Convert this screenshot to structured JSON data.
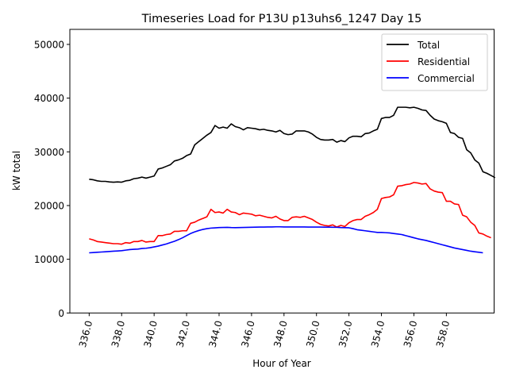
{
  "chart_data": {
    "type": "line",
    "title": "Timeseries Load for P13U p13uhs6_1247  Day 15",
    "xlabel": "Hour of Year",
    "ylabel": "kW total",
    "xlim": [
      334.81,
      360.94
    ],
    "ylim": [
      0,
      52800
    ],
    "xticks": [
      336,
      338,
      340,
      342,
      344,
      346,
      348,
      350,
      352,
      354,
      356,
      358
    ],
    "xtick_labels": [
      "336.0",
      "338.0",
      "340.0",
      "342.0",
      "344.0",
      "346.0",
      "348.0",
      "350.0",
      "352.0",
      "354.0",
      "356.0",
      "358.0"
    ],
    "yticks": [
      0,
      10000,
      20000,
      30000,
      40000,
      50000
    ],
    "ytick_labels": [
      "0",
      "10000",
      "20000",
      "30000",
      "40000",
      "50000"
    ],
    "grid": false,
    "legend_position": "top-right",
    "x_start": 336,
    "x_step": 0.25,
    "series": [
      {
        "name": "Total",
        "color": "#000000",
        "values": [
          24900,
          24800,
          24600,
          24500,
          24500,
          24400,
          24350,
          24400,
          24350,
          24600,
          24700,
          25000,
          25100,
          25300,
          25100,
          25300,
          25500,
          26800,
          27000,
          27300,
          27600,
          28300,
          28500,
          28800,
          29300,
          29600,
          31300,
          31900,
          32500,
          33100,
          33600,
          34900,
          34400,
          34600,
          34400,
          35200,
          34700,
          34500,
          34100,
          34500,
          34400,
          34300,
          34100,
          34200,
          34000,
          33900,
          33700,
          34000,
          33400,
          33200,
          33300,
          33900,
          33900,
          33900,
          33700,
          33300,
          32700,
          32300,
          32200,
          32200,
          32300,
          31800,
          32100,
          31900,
          32600,
          32900,
          32900,
          32800,
          33400,
          33500,
          33900,
          34200,
          36200,
          36400,
          36400,
          36800,
          38300,
          38300,
          38300,
          38200,
          38300,
          38100,
          37800,
          37700,
          36800,
          36100,
          35800,
          35600,
          35300,
          33600,
          33400,
          32700,
          32500,
          30400,
          29800,
          28500,
          27900,
          26300,
          26000,
          25600,
          25200
        ]
      },
      {
        "name": "Residential",
        "color": "#ff0000",
        "values": [
          13800,
          13600,
          13300,
          13200,
          13100,
          13000,
          12900,
          12900,
          12800,
          13100,
          13000,
          13300,
          13300,
          13500,
          13200,
          13300,
          13300,
          14400,
          14400,
          14600,
          14700,
          15200,
          15200,
          15300,
          15300,
          16700,
          16900,
          17300,
          17600,
          17900,
          19300,
          18700,
          18800,
          18600,
          19300,
          18800,
          18700,
          18300,
          18600,
          18500,
          18400,
          18100,
          18200,
          18000,
          17800,
          17700,
          18000,
          17500,
          17200,
          17200,
          17800,
          17900,
          17800,
          18000,
          17700,
          17400,
          16900,
          16500,
          16300,
          16200,
          16400,
          16000,
          16300,
          16100,
          16800,
          17200,
          17400,
          17400,
          18000,
          18300,
          18700,
          19300,
          21300,
          21500,
          21600,
          22000,
          23600,
          23700,
          23900,
          24000,
          24300,
          24200,
          24000,
          24100,
          23100,
          22700,
          22500,
          22400,
          20800,
          20800,
          20300,
          20200,
          18200,
          17900,
          16900,
          16300,
          14900,
          14700,
          14300,
          14000
        ]
      },
      {
        "name": "Commercial",
        "color": "#0000ff",
        "values": [
          11200,
          11250,
          11300,
          11350,
          11400,
          11450,
          11500,
          11550,
          11600,
          11700,
          11800,
          11850,
          11900,
          12000,
          12050,
          12150,
          12300,
          12450,
          12650,
          12850,
          13100,
          13350,
          13650,
          14000,
          14400,
          14800,
          15100,
          15350,
          15550,
          15700,
          15800,
          15850,
          15900,
          15920,
          15940,
          15900,
          15880,
          15900,
          15920,
          15940,
          15960,
          15980,
          16000,
          16000,
          16020,
          16020,
          16040,
          16040,
          16020,
          16020,
          16020,
          16020,
          16020,
          16020,
          16000,
          16000,
          16000,
          16000,
          15980,
          15970,
          15960,
          15950,
          15900,
          15880,
          15860,
          15700,
          15500,
          15400,
          15300,
          15200,
          15100,
          15000,
          15000,
          14950,
          14900,
          14800,
          14700,
          14600,
          14400,
          14200,
          14000,
          13800,
          13650,
          13500,
          13300,
          13100,
          12900,
          12700,
          12500,
          12300,
          12100,
          11950,
          11800,
          11650,
          11500,
          11400,
          11300,
          11200
        ]
      }
    ]
  }
}
